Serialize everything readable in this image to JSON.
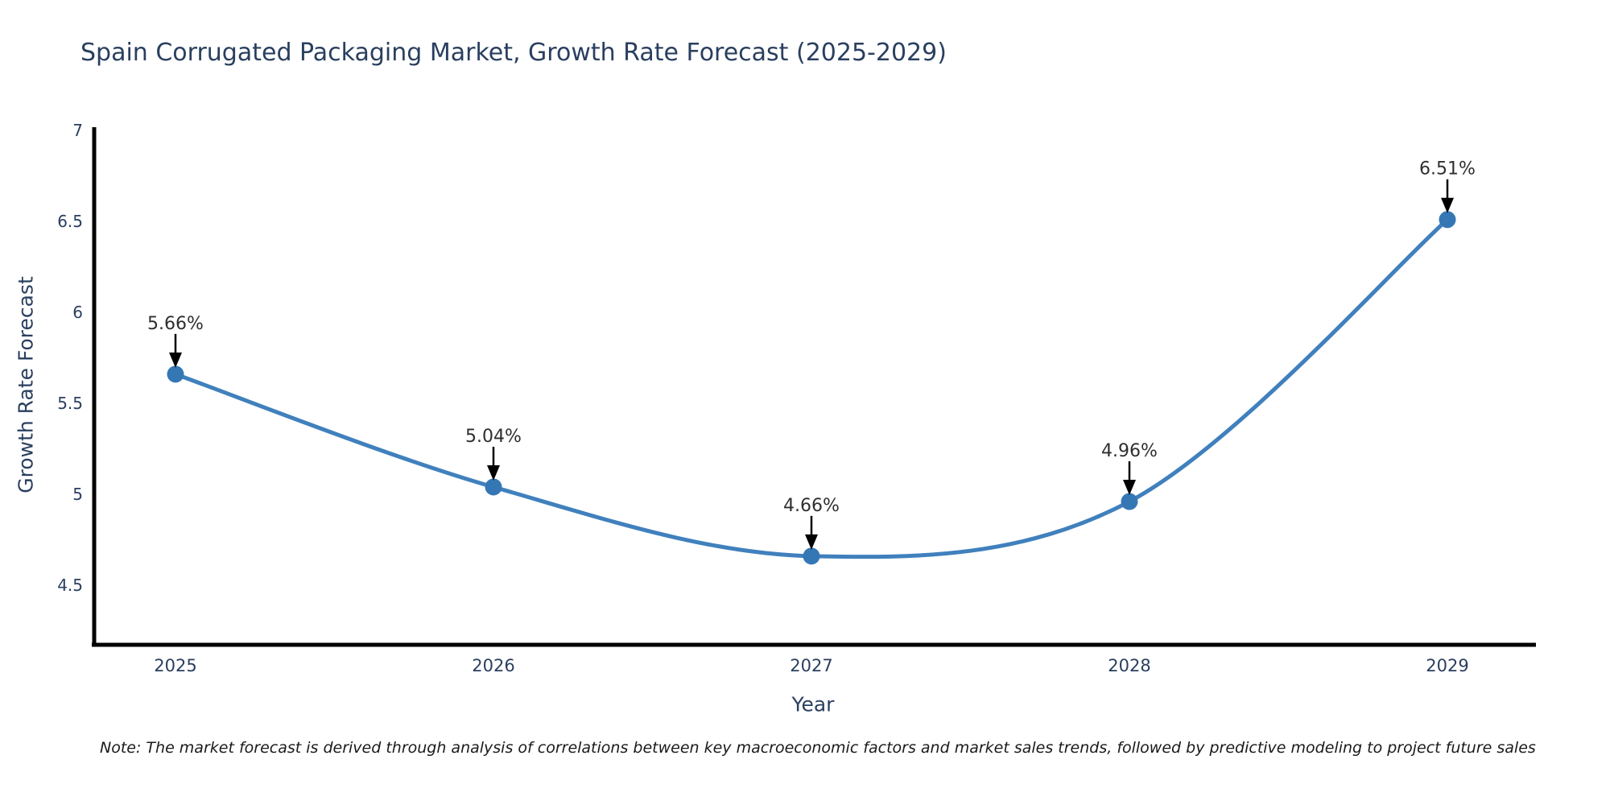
{
  "chart_data": {
    "type": "line",
    "title": "Spain Corrugated Packaging Market, Growth Rate Forecast (2025-2029)",
    "xlabel": "Year",
    "ylabel": "Growth Rate Forecast",
    "categories": [
      "2025",
      "2026",
      "2027",
      "2028",
      "2029"
    ],
    "values": [
      5.66,
      5.04,
      4.66,
      4.96,
      6.51
    ],
    "point_labels": [
      "5.66%",
      "5.04%",
      "4.66%",
      "4.96%",
      "6.51%"
    ],
    "y_ticks": [
      4.5,
      5,
      5.5,
      6,
      6.5,
      7
    ],
    "y_tick_labels": [
      "4.5",
      "5",
      "5.5",
      "6",
      "6.5",
      "7"
    ],
    "ylim": [
      4.17,
      7
    ],
    "grid": false,
    "legend_position": "none",
    "line_style": "spline",
    "marker": "circle",
    "annotation_arrows": true,
    "colors": {
      "line": "#4080bd",
      "marker": "#3577b4",
      "axis": "#000000",
      "title": "#2a3f5f",
      "tick": "#2a3f5f",
      "point_label": "#2f2f2f",
      "arrow": "#000000"
    }
  },
  "note": {
    "text": "Note: The market forecast is derived through analysis of correlations between key macroeconomic factors and market sales trends, followed by predictive modeling to project future sales"
  }
}
